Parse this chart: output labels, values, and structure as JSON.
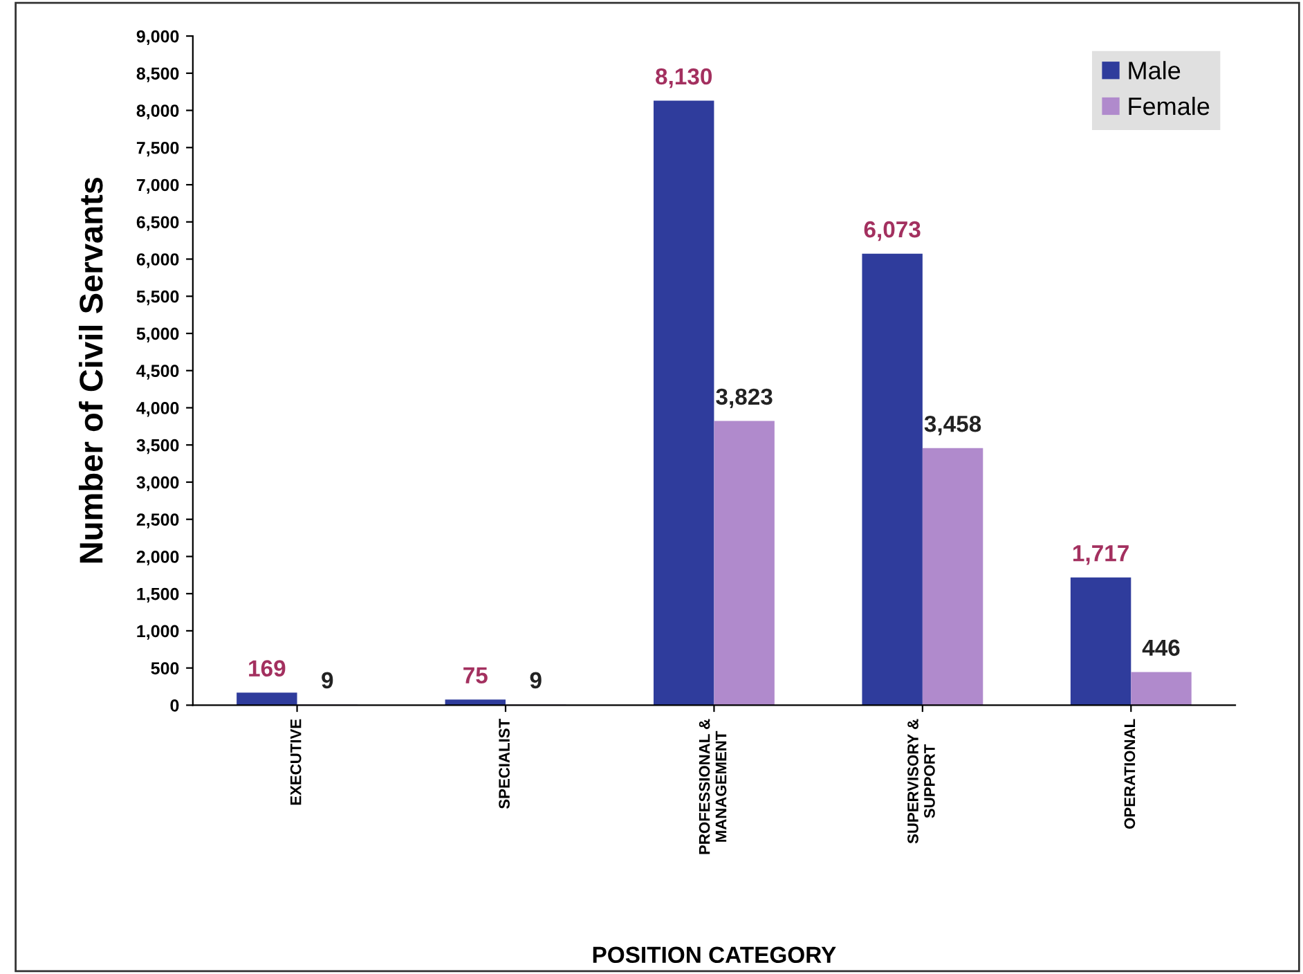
{
  "chart_data": {
    "type": "bar",
    "xlabel": "POSITION CATEGORY",
    "ylabel": "Number of Civil Servants",
    "categories": [
      "EXECUTIVE",
      "SPECIALIST",
      "PROFESSIONAL &\nMANAGEMENT",
      "SUPERVISORY &\nSUPPORT",
      "OPERATIONAL"
    ],
    "series": [
      {
        "name": "Male",
        "color": "#2f3c9c",
        "values": [
          169,
          75,
          8130,
          6073,
          1717
        ],
        "value_labels": [
          "169",
          "75",
          "8,130",
          "6,073",
          "1,717"
        ]
      },
      {
        "name": "Female",
        "color": "#b08acc",
        "values": [
          9,
          9,
          3823,
          3458,
          446
        ],
        "value_labels": [
          "9",
          "9",
          "3,823",
          "3,458",
          "446"
        ]
      }
    ],
    "ylim": [
      0,
      9000
    ],
    "yticks": [
      0,
      500,
      {
        "value": 1000,
        "label": "1,000"
      },
      {
        "value": 1500,
        "label": "1,500"
      },
      {
        "value": 2000,
        "label": "2,000"
      },
      {
        "value": 2500,
        "label": "2,500"
      },
      {
        "value": 3000,
        "label": "3,000"
      },
      {
        "value": 3500,
        "label": "3,500"
      },
      {
        "value": 4000,
        "label": "4,000"
      },
      {
        "value": 4500,
        "label": "4,500"
      },
      {
        "value": 5000,
        "label": "5,000"
      },
      {
        "value": 5500,
        "label": "5,500"
      },
      {
        "value": 6000,
        "label": "6,000"
      },
      {
        "value": 6500,
        "label": "6,500"
      },
      {
        "value": 7000,
        "label": "7,000"
      },
      {
        "value": 7500,
        "label": "7,500"
      },
      {
        "value": 8000,
        "label": "8,000"
      },
      {
        "value": 8500,
        "label": "8,500"
      },
      {
        "value": 9000,
        "label": "9,000"
      }
    ],
    "grid": false,
    "legend": "top right"
  }
}
